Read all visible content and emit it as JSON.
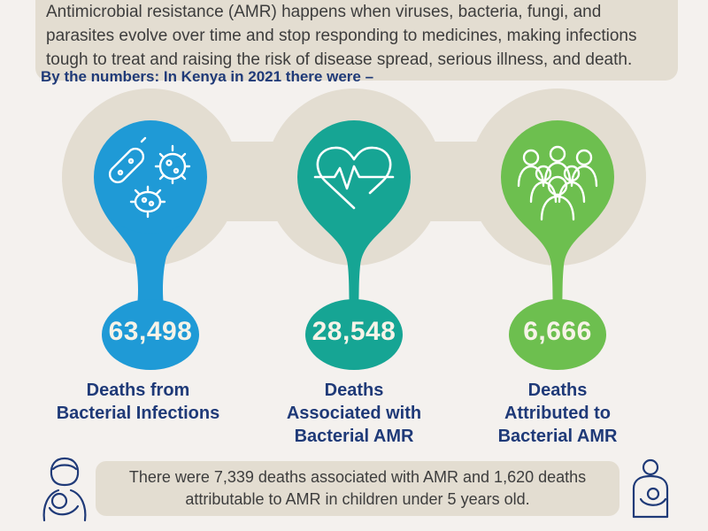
{
  "intro": {
    "lines": [
      "Antimicrobial resistance (AMR) happens when viruses, bacteria, fungi, and",
      "parasites evolve over time and stop responding to medicines, making infections",
      "tough to treat and raising the risk of disease spread, serious illness, and death."
    ]
  },
  "numbers_heading": "By the numbers: In Kenya in 2021 there were –",
  "stats": [
    {
      "value": "63,498",
      "label_lines": [
        "Deaths from",
        "Bacterial Infections"
      ],
      "color": "#1f9ad6",
      "icon": "bacteria-icon"
    },
    {
      "value": "28,548",
      "label_lines": [
        "Deaths",
        "Associated with",
        "Bacterial AMR"
      ],
      "color": "#16a594",
      "icon": "heartbeat-icon"
    },
    {
      "value": "6,666",
      "label_lines": [
        "Deaths",
        "Attributed to",
        "Bacterial AMR"
      ],
      "color": "#6dbf4f",
      "icon": "people-group-icon"
    }
  ],
  "footer": {
    "lines": [
      "There were 7,339 deaths associated with AMR and 1,620 deaths",
      "attributable to AMR in children under 5 years old."
    ]
  },
  "colors": {
    "background": "#f4f1ee",
    "band": "#e3ddd1",
    "heading": "#1f3a78"
  }
}
